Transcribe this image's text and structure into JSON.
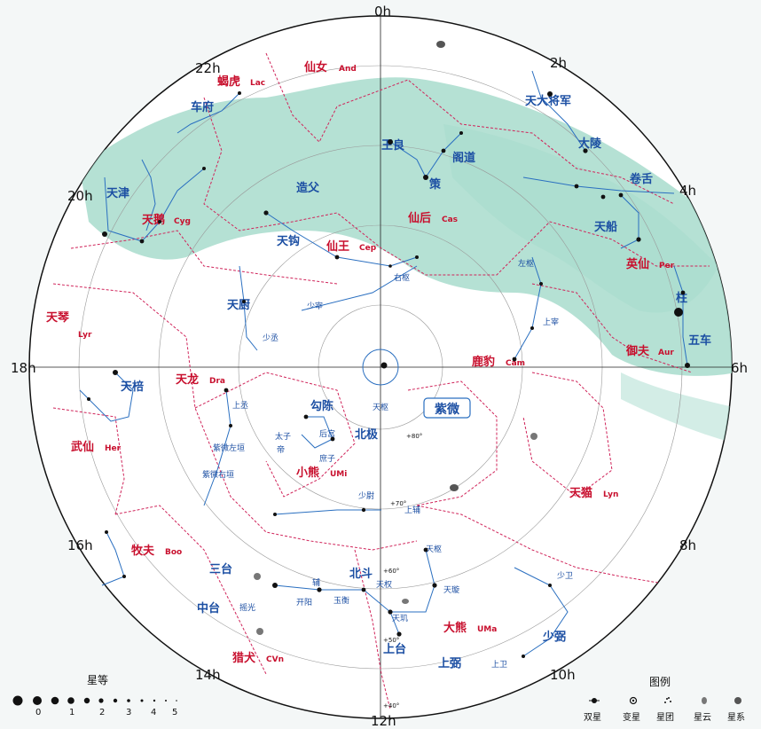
{
  "hours": [
    "0h",
    "2h",
    "4h",
    "6h",
    "8h",
    "10h",
    "12h",
    "14h",
    "16h",
    "18h",
    "20h",
    "22h"
  ],
  "declinations": [
    "+80°",
    "+70°",
    "+60°",
    "+50°",
    "+40°"
  ],
  "center_label": "紫微",
  "constellations_blue": [
    {
      "zh": "蝎虎",
      "abbr": "Lac"
    },
    {
      "zh": "仙女",
      "abbr": "And"
    },
    {
      "zh": "天鹅",
      "abbr": "Cyg"
    },
    {
      "zh": "仙王",
      "abbr": "Cep"
    },
    {
      "zh": "仙后",
      "abbr": "Cas"
    },
    {
      "zh": "英仙",
      "abbr": "Per"
    },
    {
      "zh": "鹿豹",
      "abbr": "Cam"
    },
    {
      "zh": "御夫",
      "abbr": "Aur"
    },
    {
      "zh": "天琴",
      "abbr": "Lyr"
    },
    {
      "zh": "天龙",
      "abbr": "Dra"
    },
    {
      "zh": "武仙",
      "abbr": "Her"
    },
    {
      "zh": "小熊",
      "abbr": "UMi"
    },
    {
      "zh": "天猫",
      "abbr": "Lyn"
    },
    {
      "zh": "牧夫",
      "abbr": "Boo"
    },
    {
      "zh": "大熊",
      "abbr": "UMa"
    },
    {
      "zh": "猎犬",
      "abbr": "CVn"
    }
  ],
  "asterisms": [
    "车府",
    "天津",
    "造父",
    "天钩",
    "王良",
    "阁道",
    "策",
    "天大将军",
    "大陵",
    "卷舌",
    "天船",
    "柱",
    "五车",
    "天厨",
    "天棓",
    "勾陈",
    "天枢",
    "北极",
    "后宫",
    "太子",
    "帝",
    "庶子",
    "少尉",
    "上辅",
    "北斗",
    "天枢",
    "天璇",
    "天玑",
    "天权",
    "玉衡",
    "开阳",
    "摇光",
    "辅",
    "天枪",
    "玄戈",
    "太阳守",
    "太尊",
    "三台",
    "中台",
    "上台",
    "上弼",
    "少弼",
    "上卫",
    "少卫",
    "上丞",
    "少丞",
    "少宰",
    "上宰",
    "左枢",
    "右枢",
    "紫微左垣",
    "紫微右垣"
  ],
  "legend": {
    "magnitude_title": "星等",
    "magnitudes": [
      "0",
      "1",
      "2",
      "3",
      "4",
      "5"
    ],
    "symbols_title": "图例",
    "symbols": [
      "双星",
      "变星",
      "星团",
      "星云",
      "星系"
    ]
  },
  "colors": {
    "milky_way": "#a8dccd",
    "boundary": "#d0245a",
    "asterism_line": "#2a6fc0",
    "text_red": "#c8102e",
    "text_blue": "#1c4fa3"
  }
}
